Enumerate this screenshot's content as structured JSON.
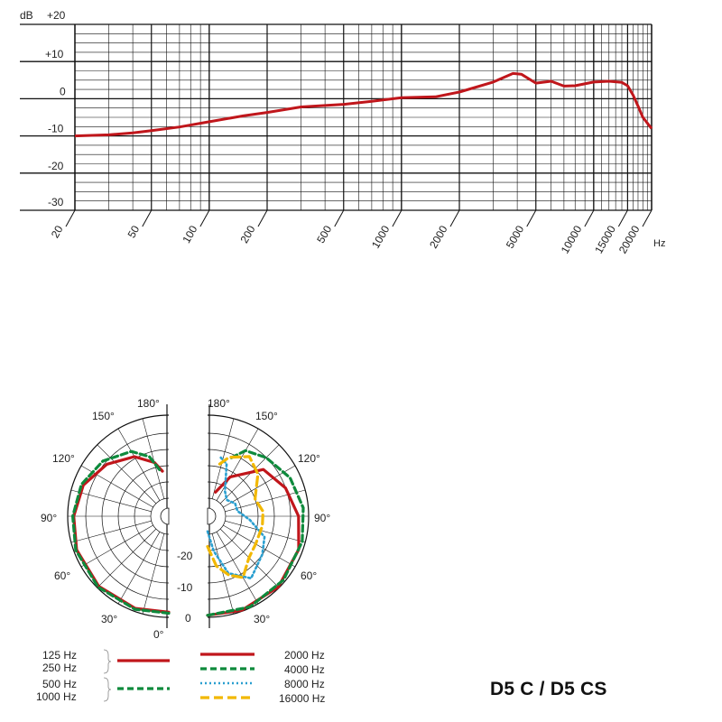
{
  "chart_data": [
    {
      "type": "line",
      "title": "",
      "xlabel": "Hz",
      "ylabel": "dB",
      "xscale": "log",
      "xlim": [
        20,
        20000
      ],
      "ylim": [
        -30,
        20
      ],
      "y_ticks": [
        "+20",
        "+10",
        "0",
        "-10",
        "-20",
        "-30"
      ],
      "x_ticks": [
        "20",
        "50",
        "100",
        "200",
        "500",
        "1000",
        "2000",
        "5000",
        "10000",
        "15000",
        "20000"
      ],
      "grid": true,
      "series": [
        {
          "color": "#c0161b",
          "x": [
            20,
            30,
            40,
            50,
            70,
            100,
            150,
            200,
            300,
            500,
            700,
            1000,
            1500,
            2000,
            3000,
            3800,
            4200,
            5000,
            6000,
            7000,
            8000,
            10000,
            12000,
            14000,
            15000,
            16000,
            17000,
            18000,
            20000
          ],
          "y": [
            -10,
            -9.7,
            -9.2,
            -8.6,
            -7.6,
            -6.2,
            -4.6,
            -3.7,
            -2.2,
            -1.5,
            -0.7,
            0.3,
            0.5,
            1.8,
            4.5,
            6.8,
            6.6,
            4.2,
            4.7,
            3.4,
            3.5,
            4.5,
            4.7,
            4.4,
            3.5,
            1.0,
            -2.0,
            -5.0,
            -8.0
          ]
        }
      ]
    },
    {
      "type": "polar",
      "angle_labels": [
        "180°",
        "150°",
        "120°",
        "90°",
        "60°",
        "30°",
        "0°"
      ],
      "radial_ticks": [
        "-20",
        "-10",
        "0"
      ],
      "series": [
        {
          "name": "125 Hz / 250 Hz",
          "side": "left",
          "color": "#c0161b",
          "style": "solid"
        },
        {
          "name": "500 Hz / 1000 Hz",
          "side": "left",
          "color": "#0e8a3c",
          "style": "dashed"
        },
        {
          "name": "2000 Hz",
          "side": "right",
          "color": "#c0161b",
          "style": "solid"
        },
        {
          "name": "4000 Hz",
          "side": "right",
          "color": "#0e8a3c",
          "style": "dashed"
        },
        {
          "name": "8000 Hz",
          "side": "right",
          "color": "#2a9fd0",
          "style": "dotted"
        },
        {
          "name": "16000 Hz",
          "side": "right",
          "color": "#f2b800",
          "style": "longdash"
        }
      ]
    }
  ],
  "legend": {
    "left": [
      {
        "lines": [
          "125 Hz",
          "250 Hz"
        ],
        "color": "#c0161b",
        "style": "solid"
      },
      {
        "lines": [
          "500 Hz",
          "1000 Hz"
        ],
        "color": "#0e8a3c",
        "style": "dashed"
      }
    ],
    "right": [
      {
        "label": "2000 Hz",
        "color": "#c0161b",
        "style": "solid"
      },
      {
        "label": "4000 Hz",
        "color": "#0e8a3c",
        "style": "dashed"
      },
      {
        "label": "8000 Hz",
        "color": "#2a9fd0",
        "style": "dotted"
      },
      {
        "label": "16000 Hz",
        "color": "#f2b800",
        "style": "longdash"
      }
    ]
  },
  "model": "D5 C / D5 CS"
}
